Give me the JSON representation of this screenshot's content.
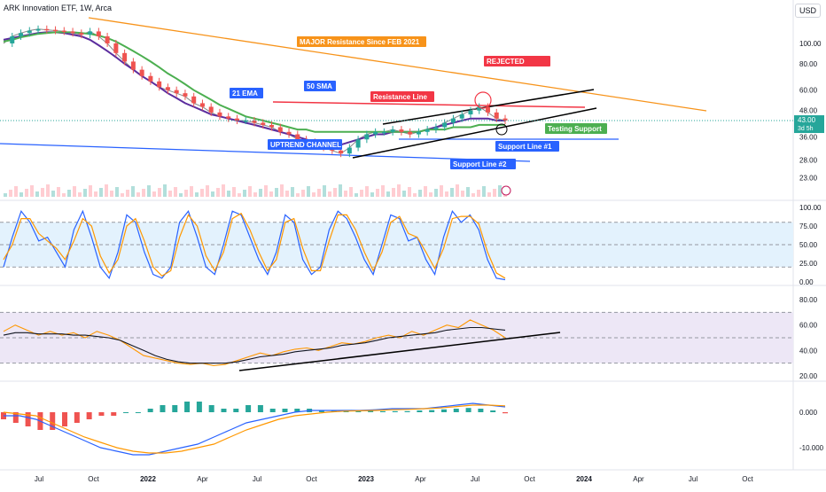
{
  "header": {
    "symbol_title": "ARK Innovation ETF, 1W, Arca",
    "currency": "USD",
    "last_price": "43.00",
    "countdown": "3d 5h"
  },
  "colors": {
    "up": "#26a69a",
    "down": "#ef5350",
    "ema21": "#5b2c9e",
    "sma50": "#4caf50",
    "major_resistance": "#f7931a",
    "resistance": "#f23645",
    "support": "#2962ff",
    "testing_support": "#4caf50",
    "rsi_k": "#2962ff",
    "rsi_d": "#ff9800",
    "rsi_band": "#e3f2fd",
    "rsi2_band": "#ede7f6",
    "macd": "#2962ff",
    "signal": "#ff9800"
  },
  "annotations": {
    "major_resistance": "MAJOR Resistance Since FEB 2021",
    "rejected": "REJECTED",
    "resistance_line": "Resistance Line",
    "ema21": "21 EMA",
    "sma50": "50 SMA",
    "uptrend_channel": "UPTREND CHANNEL",
    "support_line_1": "Support Line #1",
    "support_line_2": "Support Line #2",
    "testing_support": "Testing Support"
  },
  "chart_data": [
    {
      "type": "line",
      "name": "price",
      "yscale": "log",
      "y_ticks": [
        "100.00",
        "80.00",
        "60.00",
        "48.00",
        "36.00",
        "28.00",
        "23.00"
      ],
      "x_ticks": [
        "Jul",
        "Oct",
        "2022",
        "Apr",
        "Jul",
        "Oct",
        "2023",
        "Apr",
        "Jul",
        "Oct",
        "2024",
        "Apr",
        "Jul",
        "Oct"
      ],
      "series": [
        {
          "values": [
            100,
            108,
            112,
            115,
            117,
            116,
            115,
            114,
            112,
            110,
            114,
            108,
            100,
            90,
            82,
            75,
            70,
            66,
            62,
            60,
            58,
            56,
            52,
            50,
            47,
            45,
            44,
            43,
            43,
            42,
            41,
            40,
            38,
            37,
            35,
            34,
            33,
            32,
            31,
            30,
            32,
            35,
            37,
            38,
            38,
            39,
            38,
            37,
            38,
            39,
            40,
            42,
            44,
            46,
            48,
            50,
            47,
            44,
            43
          ]
        },
        {
          "name": "21 EMA",
          "values": [
            104,
            106,
            108,
            110,
            112,
            113,
            113,
            112,
            110,
            108,
            104,
            98,
            92,
            86,
            80,
            75,
            70,
            66,
            62,
            58,
            55,
            52,
            50,
            48,
            46,
            45,
            44,
            43,
            42,
            41,
            40,
            39,
            38,
            37,
            36,
            35,
            34,
            33,
            33,
            33,
            34,
            35,
            36,
            37,
            37,
            38,
            38,
            38,
            38,
            39,
            40,
            41,
            42,
            43,
            44,
            44,
            44,
            43,
            43
          ]
        },
        {
          "name": "50 SMA",
          "values": [
            102,
            104,
            107,
            109,
            111,
            112,
            113,
            113,
            113,
            112,
            111,
            109,
            106,
            102,
            97,
            92,
            87,
            82,
            77,
            72,
            68,
            64,
            60,
            57,
            54,
            51,
            49,
            47,
            45,
            44,
            43,
            42,
            41,
            40,
            39,
            39,
            38,
            38,
            38,
            38,
            38,
            38,
            38,
            38,
            38,
            38,
            38,
            38,
            38,
            39,
            39,
            39,
            40,
            40,
            40,
            41,
            41,
            41,
            41
          ]
        }
      ]
    },
    {
      "type": "line",
      "name": "Stochastic RSI",
      "ylim": [
        0,
        100
      ],
      "y_ticks": [
        "100.00",
        "75.00",
        "50.00",
        "25.00",
        "0.00"
      ],
      "series": [
        {
          "values": [
            20,
            60,
            95,
            80,
            55,
            60,
            40,
            20,
            70,
            95,
            60,
            20,
            5,
            40,
            90,
            80,
            40,
            10,
            5,
            20,
            80,
            95,
            60,
            20,
            10,
            50,
            95,
            90,
            60,
            30,
            10,
            40,
            90,
            80,
            30,
            10,
            20,
            70,
            95,
            85,
            60,
            30,
            10,
            50,
            90,
            85,
            55,
            60,
            30,
            10,
            60,
            95,
            80,
            90,
            70,
            30,
            5,
            3
          ]
        },
        {
          "values": [
            30,
            50,
            85,
            85,
            65,
            55,
            45,
            30,
            55,
            85,
            75,
            35,
            12,
            30,
            75,
            85,
            55,
            20,
            8,
            15,
            60,
            90,
            75,
            35,
            15,
            40,
            85,
            92,
            70,
            40,
            15,
            30,
            80,
            85,
            45,
            15,
            15,
            55,
            90,
            90,
            70,
            40,
            15,
            40,
            80,
            88,
            65,
            60,
            40,
            18,
            45,
            85,
            88,
            88,
            78,
            40,
            12,
            5
          ]
        }
      ]
    },
    {
      "type": "line",
      "name": "RSI",
      "ylim": [
        20,
        80
      ],
      "y_ticks": [
        "80.00",
        "60.00",
        "40.00",
        "20.00"
      ],
      "series": [
        {
          "values": [
            55,
            60,
            56,
            52,
            55,
            52,
            54,
            50,
            55,
            52,
            48,
            42,
            36,
            34,
            32,
            30,
            29,
            30,
            28,
            29,
            32,
            35,
            38,
            36,
            39,
            41,
            42,
            40,
            43,
            46,
            45,
            47,
            50,
            52,
            50,
            55,
            52,
            56,
            60,
            58,
            64,
            60,
            56,
            50
          ]
        },
        {
          "values": [
            52,
            54,
            54,
            53,
            53,
            53,
            52,
            52,
            51,
            50,
            48,
            44,
            40,
            36,
            33,
            31,
            30,
            30,
            30,
            30,
            31,
            33,
            35,
            36,
            37,
            39,
            40,
            41,
            42,
            44,
            45,
            46,
            48,
            50,
            51,
            52,
            53,
            54,
            56,
            57,
            58,
            58,
            57,
            56
          ]
        }
      ]
    },
    {
      "type": "bar",
      "name": "MACD",
      "y_ticks": [
        "0.000",
        "-10.000"
      ],
      "values": [
        -2,
        -3,
        -4,
        -5,
        -5,
        -4,
        -3,
        -2,
        -1,
        -1,
        0,
        0,
        1,
        2,
        2,
        3,
        3,
        2,
        1,
        1,
        2,
        2,
        1,
        1,
        1,
        1,
        0.5,
        0.5,
        0.5,
        0.5,
        0.5,
        0.3,
        0.3,
        0.3,
        0.5,
        0.6,
        0.8,
        1,
        1.2,
        1,
        0.5,
        -0.3
      ],
      "series": [
        {
          "values": [
            -1,
            -1,
            -2,
            -4,
            -6,
            -8,
            -10,
            -11,
            -12,
            -12,
            -11,
            -10,
            -9,
            -7,
            -5,
            -3,
            -2,
            -1,
            0,
            0.5,
            0.5,
            0.5,
            0.5,
            0.7,
            1,
            1,
            1,
            1.5,
            2,
            2.5,
            2,
            1.5
          ]
        },
        {
          "values": [
            0,
            -0.5,
            -1,
            -3,
            -5,
            -7,
            -8.5,
            -10,
            -11,
            -11.5,
            -11.5,
            -11,
            -10,
            -9,
            -7,
            -5,
            -3.5,
            -2,
            -1,
            -0.5,
            0,
            0.3,
            0.4,
            0.5,
            0.7,
            0.8,
            1,
            1.2,
            1.6,
            2,
            2,
            1.8
          ]
        }
      ]
    }
  ]
}
